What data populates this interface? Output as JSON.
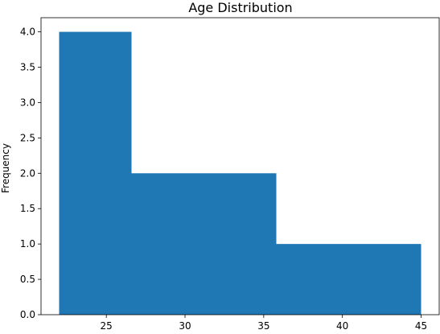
{
  "chart_data": {
    "type": "bar",
    "title": "Age Distribution",
    "xlabel": "",
    "ylabel": "Frequency",
    "bins": [
      {
        "start": 22.0,
        "end": 26.6,
        "count": 4
      },
      {
        "start": 26.6,
        "end": 31.2,
        "count": 2
      },
      {
        "start": 31.2,
        "end": 35.8,
        "count": 2
      },
      {
        "start": 35.8,
        "end": 40.4,
        "count": 1
      },
      {
        "start": 40.4,
        "end": 45.0,
        "count": 1
      }
    ],
    "xlim": [
      20.85,
      46.15
    ],
    "ylim": [
      0,
      4.2
    ],
    "xticks": [
      25,
      30,
      35,
      40,
      45
    ],
    "yticks": [
      0.0,
      0.5,
      1.0,
      1.5,
      2.0,
      2.5,
      3.0,
      3.5,
      4.0
    ],
    "xtick_labels": [
      "25",
      "30",
      "35",
      "40",
      "45"
    ],
    "ytick_labels": [
      "0.0",
      "0.5",
      "1.0",
      "1.5",
      "2.0",
      "2.5",
      "3.0",
      "3.5",
      "4.0"
    ],
    "bar_color": "#1f77b4",
    "grid": false,
    "legend": "none"
  }
}
